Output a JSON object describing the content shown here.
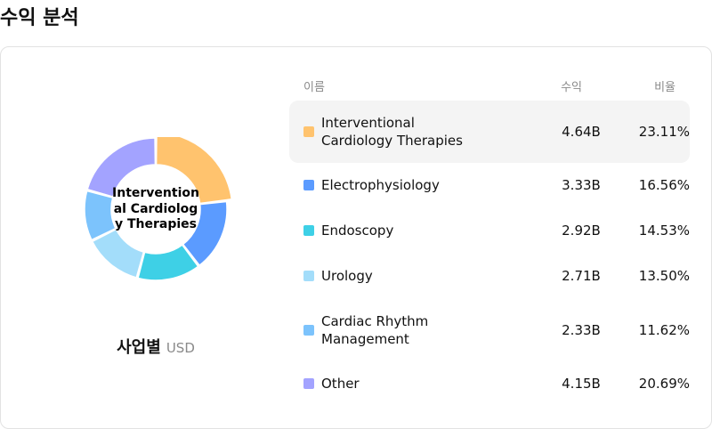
{
  "header": {
    "title": "수익 분석"
  },
  "chart": {
    "center_label": "Interventional Cardiology Therapies",
    "caption_title": "사업별",
    "caption_unit": "USD"
  },
  "table": {
    "col_name": "이름",
    "col_revenue": "수익",
    "col_ratio": "비율"
  },
  "segments": [
    {
      "name": "Interventional Cardiology Therapies",
      "revenue": "4.64B",
      "percent": "23.11%",
      "color": "#FFC36E"
    },
    {
      "name": "Electrophysiology",
      "revenue": "3.33B",
      "percent": "16.56%",
      "color": "#5B9BFF"
    },
    {
      "name": "Endoscopy",
      "revenue": "2.92B",
      "percent": "14.53%",
      "color": "#3ED0E6"
    },
    {
      "name": "Urology",
      "revenue": "2.71B",
      "percent": "13.50%",
      "color": "#A3DDFA"
    },
    {
      "name": "Cardiac Rhythm Management",
      "revenue": "2.33B",
      "percent": "11.62%",
      "color": "#7CC3FC"
    },
    {
      "name": "Other",
      "revenue": "4.15B",
      "percent": "20.69%",
      "color": "#A3A3FF"
    }
  ],
  "chart_data": {
    "type": "pie",
    "categories": [
      "Interventional Cardiology Therapies",
      "Electrophysiology",
      "Endoscopy",
      "Urology",
      "Cardiac Rhythm Management",
      "Other"
    ],
    "values": [
      23.11,
      16.56,
      14.53,
      13.5,
      11.62,
      20.69
    ],
    "highlighted": "Interventional Cardiology Therapies"
  }
}
